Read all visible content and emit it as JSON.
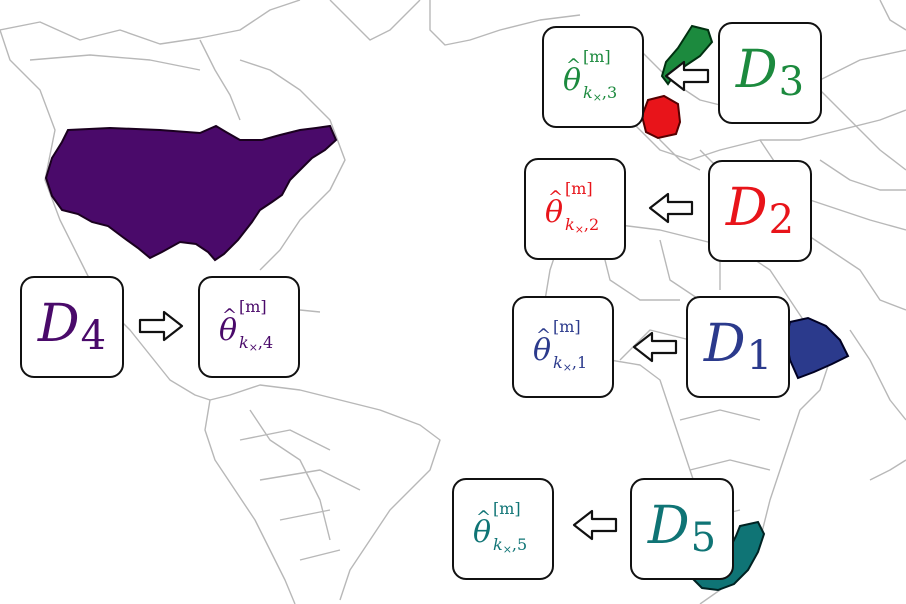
{
  "colors": {
    "d1": "#2b3a8c",
    "d2": "#e8141a",
    "d3": "#1c8a3e",
    "d4": "#4a0a6a",
    "d5": "#0f7475",
    "map_line": "#b8b8b8",
    "box_border": "#111111"
  },
  "arrow_icon": "hollow-arrow-icon",
  "nodes": [
    {
      "id": "d1",
      "symbol": "D",
      "index": "1",
      "theta": {
        "base": "θ",
        "hat": "^",
        "sup": "[m]",
        "k": "k",
        "times": "×",
        "index": ",1"
      }
    },
    {
      "id": "d2",
      "symbol": "D",
      "index": "2",
      "theta": {
        "base": "θ",
        "hat": "^",
        "sup": "[m]",
        "k": "k",
        "times": "×",
        "index": ",2"
      }
    },
    {
      "id": "d3",
      "symbol": "D",
      "index": "3",
      "theta": {
        "base": "θ",
        "hat": "^",
        "sup": "[m]",
        "k": "k",
        "times": "×",
        "index": ",3"
      }
    },
    {
      "id": "d4",
      "symbol": "D",
      "index": "4",
      "theta": {
        "base": "θ",
        "hat": "^",
        "sup": "[m]",
        "k": "k",
        "times": "×",
        "index": ",4"
      }
    },
    {
      "id": "d5",
      "symbol": "D",
      "index": "5",
      "theta": {
        "base": "θ",
        "hat": "^",
        "sup": "[m]",
        "k": "k",
        "times": "×",
        "index": ",5"
      }
    }
  ]
}
